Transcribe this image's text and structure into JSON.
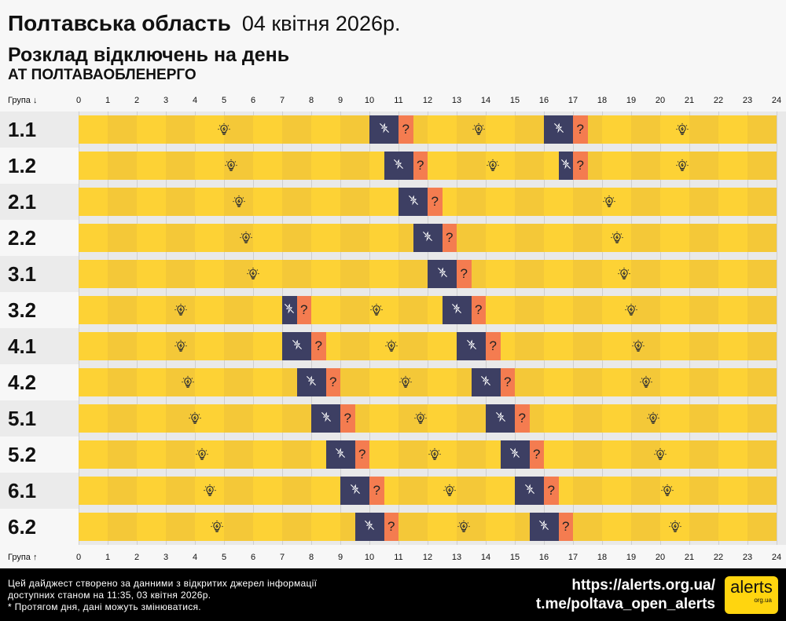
{
  "header": {
    "region": "Полтавська область",
    "date": "04 квітня 2026р.",
    "subtitle": "Розклад відключень на день",
    "company": "АТ ПОЛТАВАОБЛЕНЕРГО"
  },
  "axis": {
    "top_label": "Група ↓",
    "bottom_label": "Група ↑",
    "hours": [
      "0",
      "1",
      "2",
      "3",
      "4",
      "5",
      "6",
      "7",
      "8",
      "9",
      "10",
      "11",
      "12",
      "13",
      "14",
      "15",
      "16",
      "17",
      "18",
      "19",
      "20",
      "21",
      "22",
      "23",
      "24"
    ]
  },
  "colors": {
    "on_a": "#fdd235",
    "on_b": "#f4c838",
    "outage": "#3d3f63",
    "unknown": "#f47c50"
  },
  "legend_icons": {
    "on": "lightbulb-icon",
    "outage": "power-off-icon",
    "unknown": "question-mark"
  },
  "unknown_symbol": "?",
  "groups": [
    {
      "name": "1.1",
      "outages": [
        [
          10,
          11
        ],
        [
          16,
          17
        ]
      ],
      "unknown": [
        [
          11,
          11.5
        ],
        [
          17,
          17.5
        ]
      ]
    },
    {
      "name": "1.2",
      "outages": [
        [
          10.5,
          11.5
        ],
        [
          16.5,
          17
        ]
      ],
      "unknown": [
        [
          11.5,
          12
        ],
        [
          17,
          17.5
        ]
      ]
    },
    {
      "name": "2.1",
      "outages": [
        [
          11,
          12
        ]
      ],
      "unknown": [
        [
          12,
          12.5
        ]
      ]
    },
    {
      "name": "2.2",
      "outages": [
        [
          11.5,
          12.5
        ]
      ],
      "unknown": [
        [
          12.5,
          13
        ]
      ]
    },
    {
      "name": "3.1",
      "outages": [
        [
          12,
          13
        ]
      ],
      "unknown": [
        [
          13,
          13.5
        ]
      ]
    },
    {
      "name": "3.2",
      "outages": [
        [
          7,
          7.5
        ],
        [
          12.5,
          13.5
        ]
      ],
      "unknown": [
        [
          7.5,
          8
        ],
        [
          13.5,
          14
        ]
      ]
    },
    {
      "name": "4.1",
      "outages": [
        [
          7,
          8
        ],
        [
          13,
          14
        ]
      ],
      "unknown": [
        [
          8,
          8.5
        ],
        [
          14,
          14.5
        ]
      ]
    },
    {
      "name": "4.2",
      "outages": [
        [
          7.5,
          8.5
        ],
        [
          13.5,
          14.5
        ]
      ],
      "unknown": [
        [
          8.5,
          9
        ],
        [
          14.5,
          15
        ]
      ]
    },
    {
      "name": "5.1",
      "outages": [
        [
          8,
          9
        ],
        [
          14,
          15
        ]
      ],
      "unknown": [
        [
          9,
          9.5
        ],
        [
          15,
          15.5
        ]
      ]
    },
    {
      "name": "5.2",
      "outages": [
        [
          8.5,
          9.5
        ],
        [
          14.5,
          15.5
        ]
      ],
      "unknown": [
        [
          9.5,
          10
        ],
        [
          15.5,
          16
        ]
      ]
    },
    {
      "name": "6.1",
      "outages": [
        [
          9,
          10
        ],
        [
          15,
          16
        ]
      ],
      "unknown": [
        [
          10,
          10.5
        ],
        [
          16,
          16.5
        ]
      ]
    },
    {
      "name": "6.2",
      "outages": [
        [
          9.5,
          10.5
        ],
        [
          15.5,
          16.5
        ]
      ],
      "unknown": [
        [
          10.5,
          11
        ],
        [
          16.5,
          17
        ]
      ]
    }
  ],
  "footer": {
    "note_lines": [
      "Цей дайджест створено за данними з відкритих джерел інформації",
      "доступних станом на 11:35, 03 квітня 2026р.",
      "* Протягом дня, дані можуть змінюватися."
    ],
    "site_link": "https://alerts.org.ua/",
    "telegram_link": "t.me/poltava_open_alerts",
    "logo_text": "alerts",
    "logo_sub": "org.ua"
  }
}
